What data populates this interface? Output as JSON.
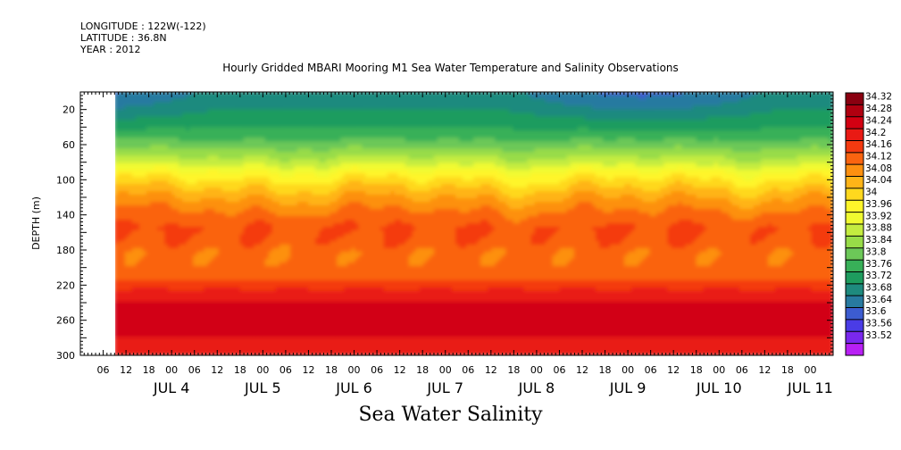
{
  "header": {
    "longitude": "LONGITUDE : 122W(-122)",
    "latitude": "LATITUDE : 36.8N",
    "year": "YEAR : 2012",
    "title": "Hourly Gridded MBARI Mooring M1 Sea Water Temperature and Salinity Observations"
  },
  "chart_data": {
    "type": "heatmap",
    "title": "Hourly Gridded MBARI Mooring M1 Sea Water Temperature and Salinity Observations",
    "bottom_title": "Sea Water Salinity",
    "ylabel": "DEPTH (m)",
    "xlabel": "",
    "y_axis": {
      "ylim": [
        0,
        300
      ],
      "inverted": true,
      "ticks": [
        20,
        60,
        100,
        140,
        180,
        220,
        260,
        300
      ],
      "minor_step": 20
    },
    "x_axis": {
      "start": "2012-07-03T00:00",
      "end": "2012-07-11T06:00",
      "data_start": "2012-07-03T09:00",
      "hour_ticks": [
        "06",
        "12",
        "18",
        "00",
        "06",
        "12",
        "18",
        "00",
        "06",
        "12",
        "18",
        "00",
        "06",
        "12",
        "18",
        "00",
        "06",
        "12",
        "18",
        "00",
        "06",
        "12",
        "18",
        "00",
        "06",
        "12",
        "18",
        "00",
        "06",
        "12",
        "18",
        "00"
      ],
      "hour_tick_times": [
        "2012-07-03T06:00",
        "2012-07-03T12:00",
        "2012-07-03T18:00",
        "2012-07-04T00:00",
        "2012-07-04T06:00",
        "2012-07-04T12:00",
        "2012-07-04T18:00",
        "2012-07-05T00:00",
        "2012-07-05T06:00",
        "2012-07-05T12:00",
        "2012-07-05T18:00",
        "2012-07-06T00:00",
        "2012-07-06T06:00",
        "2012-07-06T12:00",
        "2012-07-06T18:00",
        "2012-07-07T00:00",
        "2012-07-07T06:00",
        "2012-07-07T12:00",
        "2012-07-07T18:00",
        "2012-07-08T00:00",
        "2012-07-08T06:00",
        "2012-07-08T12:00",
        "2012-07-08T18:00",
        "2012-07-09T00:00",
        "2012-07-09T06:00",
        "2012-07-09T12:00",
        "2012-07-09T18:00",
        "2012-07-10T00:00",
        "2012-07-10T06:00",
        "2012-07-10T12:00",
        "2012-07-10T18:00",
        "2012-07-11T00:00"
      ],
      "day_labels": [
        "JUL 4",
        "JUL 5",
        "JUL 6",
        "JUL 7",
        "JUL 8",
        "JUL 9",
        "JUL 10",
        "JUL 11"
      ],
      "day_label_times": [
        "2012-07-04T00:00",
        "2012-07-05T00:00",
        "2012-07-06T00:00",
        "2012-07-07T00:00",
        "2012-07-08T00:00",
        "2012-07-09T00:00",
        "2012-07-10T00:00",
        "2012-07-11T00:00"
      ]
    },
    "colorbar": {
      "levels": [
        34.32,
        34.28,
        34.24,
        34.2,
        34.16,
        34.12,
        34.08,
        34.04,
        34,
        33.96,
        33.92,
        33.88,
        33.84,
        33.8,
        33.76,
        33.72,
        33.68,
        33.64,
        33.6,
        33.56,
        33.52
      ],
      "labels": [
        "34.32",
        "34.28",
        "34.24",
        "34.2",
        "34.16",
        "34.12",
        "34.08",
        "34.04",
        "34",
        "33.96",
        "33.92",
        "33.88",
        "33.84",
        "33.8",
        "33.76",
        "33.72",
        "33.68",
        "33.64",
        "33.6",
        "33.56",
        "33.52"
      ],
      "colors": [
        "#8a0010",
        "#b00010",
        "#d20012",
        "#e91a14",
        "#f43a10",
        "#fa6410",
        "#fd9010",
        "#ffb418",
        "#ffd81e",
        "#fff52a",
        "#f0fa30",
        "#c4ec40",
        "#98dc48",
        "#6cc858",
        "#38b058",
        "#1e9c5e",
        "#1e8a7e",
        "#287aa0",
        "#3c5cd0",
        "#4a3ce6",
        "#7a28ee",
        "#b820f4"
      ]
    },
    "depth_profile": {
      "depths": [
        5,
        20,
        35,
        50,
        65,
        80,
        95,
        110,
        125,
        140,
        155,
        170,
        185,
        200,
        215,
        230,
        245,
        260,
        275,
        290,
        300
      ],
      "salinity": [
        33.7,
        33.72,
        33.75,
        33.78,
        33.84,
        33.9,
        33.98,
        34.04,
        34.09,
        34.13,
        34.16,
        34.15,
        34.13,
        34.13,
        34.16,
        34.22,
        34.25,
        34.26,
        34.25,
        34.22,
        34.2
      ]
    }
  }
}
